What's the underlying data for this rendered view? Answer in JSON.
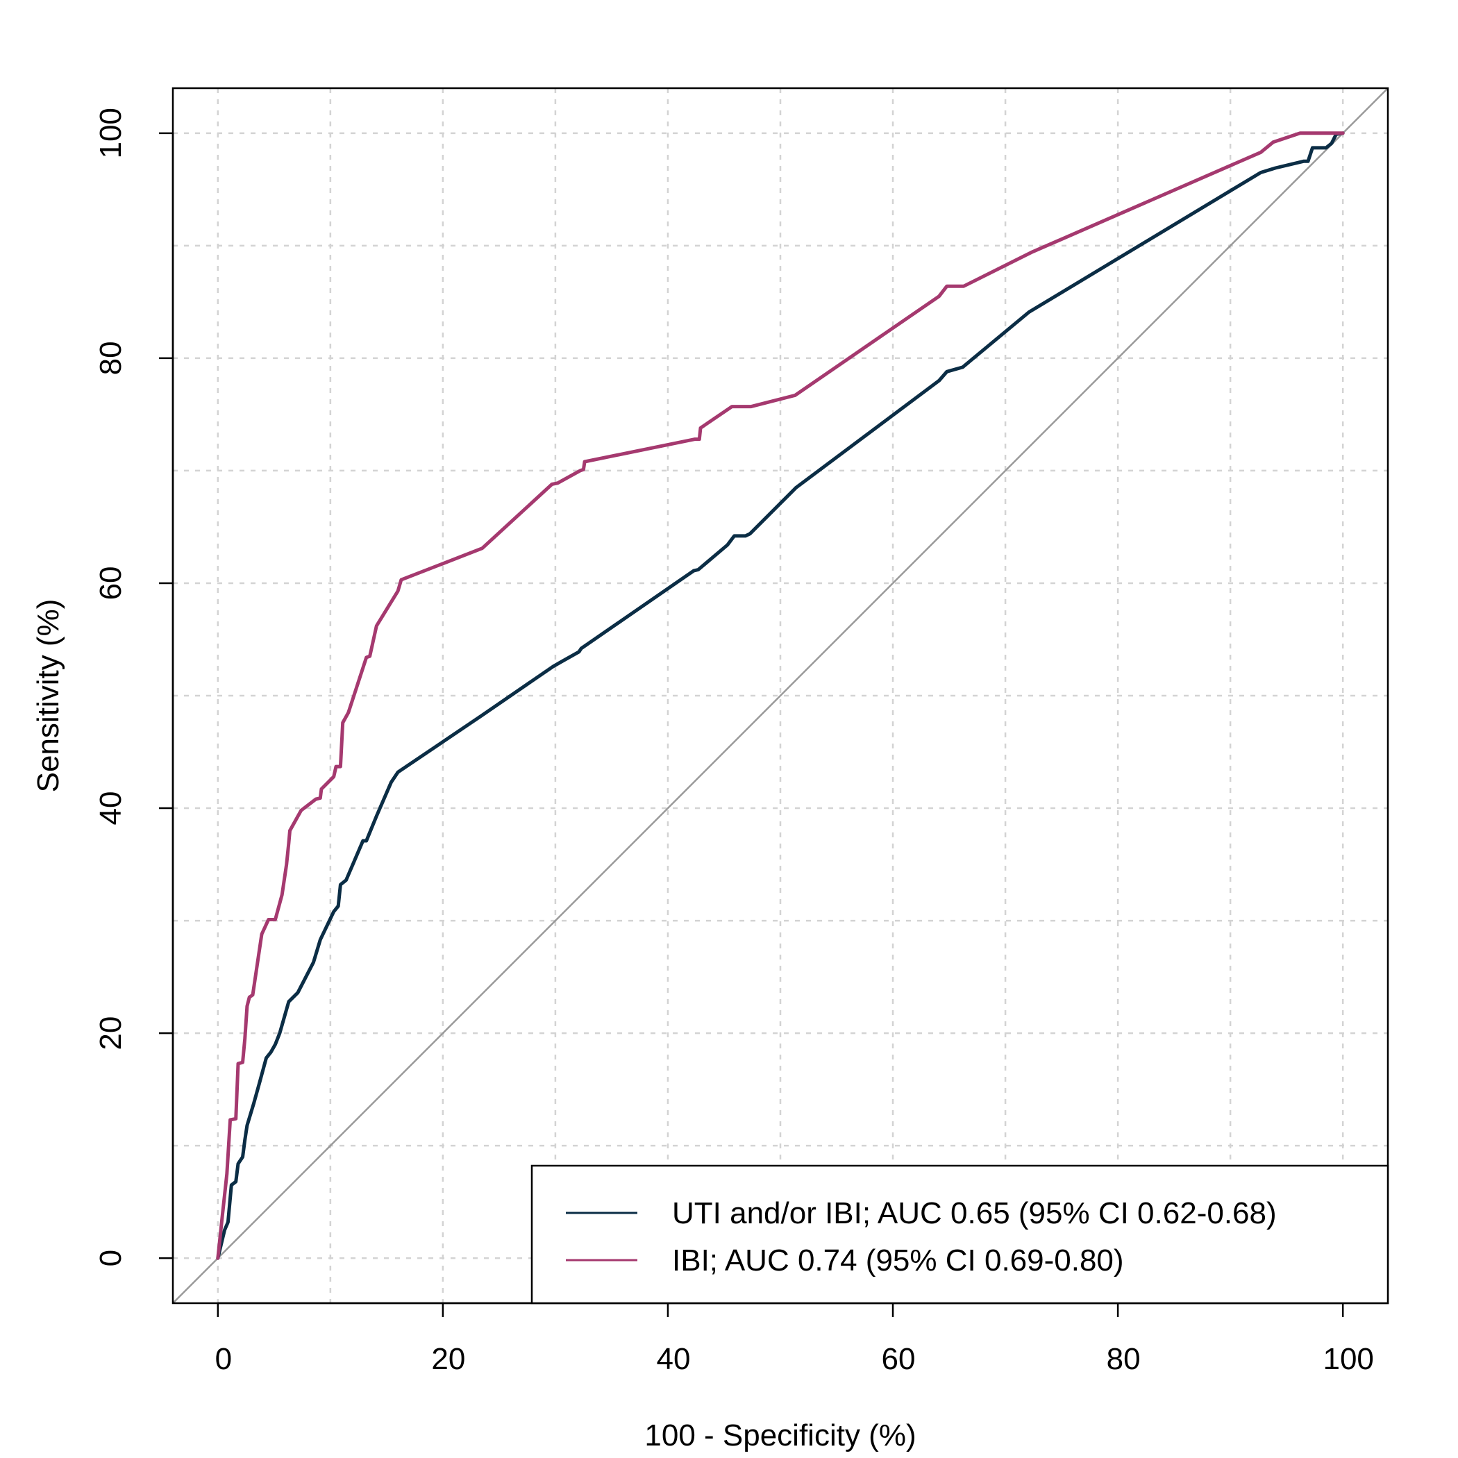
{
  "chart_data": {
    "type": "line",
    "title": "",
    "xlabel": "100 - Specificity (%)",
    "ylabel": "Sensitivity (%)",
    "xlim": [
      -4,
      104
    ],
    "ylim": [
      -4,
      104
    ],
    "x_ticks": [
      0,
      20,
      40,
      60,
      80,
      100
    ],
    "y_ticks": [
      0,
      20,
      40,
      60,
      80,
      100
    ],
    "grid": true,
    "legend_position": "bottom-right",
    "reference_line": {
      "from": [
        0,
        0
      ],
      "to": [
        100,
        100
      ],
      "color": "#999999"
    },
    "series": [
      {
        "name": "UTI and/or IBI; AUC 0.65 (95% CI 0.62-0.68)",
        "color": "#0b2d45",
        "points": [
          [
            0,
            0
          ],
          [
            0.6,
            2.5
          ],
          [
            0.9,
            3.2
          ],
          [
            1.2,
            6.5
          ],
          [
            1.6,
            6.8
          ],
          [
            1.8,
            8.4
          ],
          [
            2.2,
            9.0
          ],
          [
            2.4,
            10.5
          ],
          [
            2.6,
            11.8
          ],
          [
            3.2,
            13.8
          ],
          [
            3.7,
            15.6
          ],
          [
            4.3,
            17.8
          ],
          [
            4.7,
            18.3
          ],
          [
            5.1,
            19.0
          ],
          [
            5.5,
            20.0
          ],
          [
            6.3,
            22.8
          ],
          [
            7.1,
            23.6
          ],
          [
            8.5,
            26.3
          ],
          [
            9.1,
            28.3
          ],
          [
            10.3,
            30.8
          ],
          [
            10.7,
            31.3
          ],
          [
            10.9,
            33.2
          ],
          [
            11.4,
            33.6
          ],
          [
            12.9,
            37.1
          ],
          [
            13.2,
            37.1
          ],
          [
            14.1,
            39.3
          ],
          [
            15.4,
            42.3
          ],
          [
            16.0,
            43.2
          ],
          [
            23.4,
            48.2
          ],
          [
            29.8,
            52.6
          ],
          [
            30.5,
            53.0
          ],
          [
            32.1,
            53.9
          ],
          [
            32.3,
            54.2
          ],
          [
            42.3,
            61.1
          ],
          [
            42.7,
            61.2
          ],
          [
            45.3,
            63.4
          ],
          [
            45.9,
            64.2
          ],
          [
            46.9,
            64.2
          ],
          [
            47.3,
            64.4
          ],
          [
            51.4,
            68.5
          ],
          [
            64.1,
            78.0
          ],
          [
            64.8,
            78.8
          ],
          [
            66.2,
            79.2
          ],
          [
            72.1,
            84.1
          ],
          [
            92.7,
            96.5
          ],
          [
            94.0,
            96.9
          ],
          [
            96.5,
            97.5
          ],
          [
            96.9,
            97.5
          ],
          [
            97.3,
            98.7
          ],
          [
            98.5,
            98.7
          ],
          [
            99.0,
            99.1
          ],
          [
            99.4,
            99.9
          ],
          [
            100,
            100
          ]
        ]
      },
      {
        "name": "IBI; AUC 0.74 (95% CI 0.69-0.80)",
        "color": "#a5396f",
        "points": [
          [
            0,
            0
          ],
          [
            0.4,
            3.8
          ],
          [
            0.8,
            7.5
          ],
          [
            1.1,
            12.3
          ],
          [
            1.6,
            12.4
          ],
          [
            1.8,
            17.3
          ],
          [
            2.2,
            17.4
          ],
          [
            2.4,
            19.5
          ],
          [
            2.6,
            22.4
          ],
          [
            2.8,
            23.2
          ],
          [
            3.1,
            23.4
          ],
          [
            3.9,
            28.8
          ],
          [
            4.5,
            30.1
          ],
          [
            5.1,
            30.1
          ],
          [
            5.7,
            32.3
          ],
          [
            6.1,
            35.0
          ],
          [
            6.3,
            36.9
          ],
          [
            6.4,
            38.0
          ],
          [
            7.4,
            39.8
          ],
          [
            8.7,
            40.8
          ],
          [
            9.1,
            40.9
          ],
          [
            9.2,
            41.7
          ],
          [
            10.3,
            42.8
          ],
          [
            10.5,
            43.7
          ],
          [
            10.9,
            43.7
          ],
          [
            11.1,
            47.6
          ],
          [
            11.6,
            48.5
          ],
          [
            13.2,
            53.4
          ],
          [
            13.5,
            53.5
          ],
          [
            14.1,
            56.2
          ],
          [
            16.0,
            59.3
          ],
          [
            16.3,
            60.3
          ],
          [
            23.5,
            63.1
          ],
          [
            29.7,
            68.8
          ],
          [
            30.2,
            68.9
          ],
          [
            32.2,
            70.0
          ],
          [
            32.5,
            70.1
          ],
          [
            32.6,
            70.8
          ],
          [
            42.4,
            72.8
          ],
          [
            42.8,
            72.8
          ],
          [
            42.9,
            73.8
          ],
          [
            45.7,
            75.7
          ],
          [
            47.4,
            75.7
          ],
          [
            51.3,
            76.7
          ],
          [
            64.1,
            85.5
          ],
          [
            64.8,
            86.4
          ],
          [
            66.3,
            86.4
          ],
          [
            72.3,
            89.4
          ],
          [
            92.7,
            98.3
          ],
          [
            93.8,
            99.2
          ],
          [
            96.2,
            100
          ],
          [
            100,
            100
          ]
        ]
      }
    ]
  }
}
